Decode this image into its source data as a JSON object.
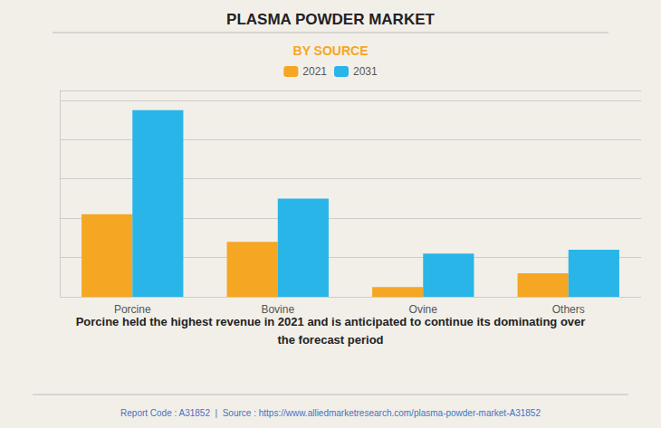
{
  "chart_data": {
    "type": "bar",
    "title": "PLASMA POWDER MARKET",
    "subtitle": "BY SOURCE",
    "categories": [
      "Porcine",
      "Bovine",
      "Ovine",
      "Others"
    ],
    "series": [
      {
        "name": "2021",
        "color": "#F5A623",
        "values": [
          42,
          28,
          5,
          12
        ]
      },
      {
        "name": "2031",
        "color": "#29B5E8",
        "values": [
          95,
          50,
          22,
          24
        ]
      }
    ],
    "ylim": [
      0,
      105
    ],
    "yticks": [
      0,
      20,
      40,
      60,
      80,
      100
    ],
    "grid": true,
    "tick_labels": "x",
    "annotations": [
      "Porcine held the highest revenue in 2021 and is anticipated to continue its dominating over\nthe forecast period",
      "Report Code : A31852  |  Source : https://www.alliedmarketresearch.com/plasma-powder-market-A31852"
    ]
  }
}
